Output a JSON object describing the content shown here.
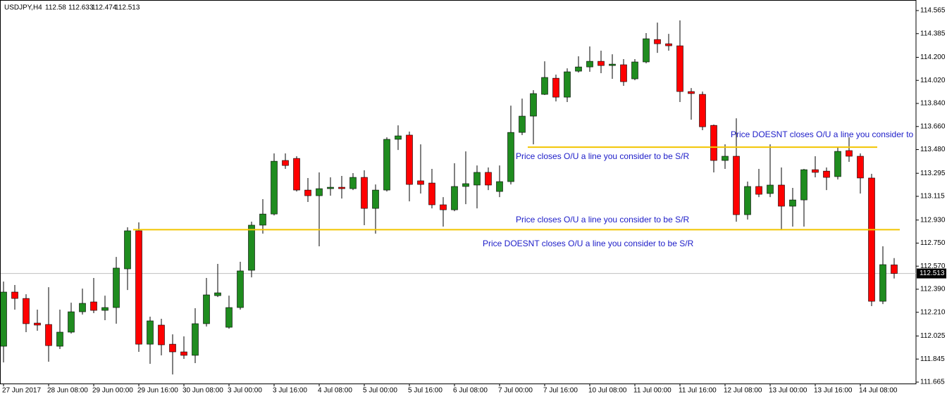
{
  "chart_data": {
    "type": "candlestick",
    "title": "USDJPY,H4",
    "categories": [
      "27 Jun 2017",
      null,
      null,
      null,
      "28 Jun 08:00",
      null,
      null,
      null,
      "29 Jun 00:00",
      null,
      null,
      null,
      "29 Jun 16:00",
      null,
      null,
      null,
      "30 Jun 08:00",
      null,
      null,
      null,
      "3 Jul 00:00",
      null,
      null,
      null,
      "3 Jul 16:00",
      null,
      null,
      null,
      "4 Jul 08:00",
      null,
      null,
      null,
      "5 Jul 00:00",
      null,
      null,
      null,
      "5 Jul 16:00",
      null,
      null,
      null,
      "6 Jul 08:00",
      null,
      null,
      null,
      "7 Jul 00:00",
      null,
      null,
      null,
      "7 Jul 16:00",
      null,
      null,
      null,
      "10 Jul 08:00",
      null,
      null,
      null,
      "11 Jul 00:00",
      null,
      null,
      null,
      "11 Jul 16:00",
      null,
      null,
      null,
      "12 Jul 08:00",
      null,
      null,
      null,
      "13 Jul 00:00",
      null,
      null,
      null,
      "13 Jul 16:00",
      null,
      null,
      null,
      "14 Jul 08:00",
      null,
      null,
      null
    ],
    "open": [
      111.945,
      112.368,
      112.318,
      112.126,
      112.115,
      111.945,
      112.055,
      112.214,
      112.291,
      112.225,
      112.247,
      112.549,
      112.846,
      111.961,
      112.11,
      111.961,
      111.901,
      111.874,
      112.121,
      112.34,
      112.093,
      112.247,
      112.538,
      112.89,
      112.977,
      113.395,
      113.411,
      113.164,
      113.12,
      113.175,
      113.186,
      113.175,
      113.263,
      113.021,
      113.164,
      113.56,
      113.593,
      113.236,
      113.219,
      113.049,
      113.01,
      113.192,
      113.203,
      113.302,
      113.153,
      113.23,
      113.614,
      113.741,
      113.911,
      114.037,
      113.889,
      114.092,
      114.125,
      114.169,
      114.136,
      114.142,
      114.032,
      114.164,
      114.339,
      114.306,
      114.29,
      113.933,
      113.911,
      113.669,
      113.395,
      113.428,
      112.972,
      113.192,
      113.137,
      113.203,
      113.038,
      113.087,
      113.323,
      113.312,
      113.269,
      113.472,
      113.428,
      113.258,
      112.296,
      112.58
    ],
    "high": [
      112.45,
      112.423,
      112.351,
      112.231,
      112.406,
      112.231,
      112.285,
      112.395,
      112.478,
      112.34,
      112.642,
      112.873,
      112.912,
      112.176,
      112.159,
      112.038,
      112.022,
      112.242,
      112.478,
      112.588,
      112.34,
      112.604,
      112.917,
      113.093,
      113.45,
      113.45,
      113.428,
      113.258,
      113.302,
      113.263,
      113.274,
      113.296,
      113.318,
      113.208,
      113.576,
      113.669,
      113.62,
      113.521,
      113.329,
      113.109,
      113.373,
      113.466,
      113.356,
      113.34,
      113.356,
      113.823,
      113.878,
      113.944,
      114.169,
      114.065,
      114.114,
      114.208,
      114.285,
      114.252,
      114.224,
      114.186,
      114.186,
      114.389,
      114.471,
      114.383,
      114.488,
      113.96,
      113.933,
      113.675,
      113.521,
      113.724,
      113.23,
      113.329,
      113.521,
      113.34,
      113.181,
      113.329,
      113.428,
      113.34,
      113.494,
      113.576,
      113.45,
      113.291,
      112.725,
      112.633
    ],
    "low": [
      111.819,
      112.231,
      112.055,
      112.066,
      111.824,
      111.923,
      112.044,
      112.192,
      112.203,
      112.148,
      112.121,
      112.384,
      111.901,
      111.808,
      111.874,
      111.725,
      111.846,
      111.813,
      112.099,
      112.329,
      112.082,
      112.231,
      112.483,
      112.824,
      112.966,
      113.329,
      113.153,
      113.071,
      112.725,
      113.12,
      113.098,
      113.164,
      112.89,
      112.824,
      113.153,
      113.477,
      113.076,
      113.137,
      113.021,
      112.879,
      112.999,
      113.054,
      113.021,
      113.164,
      113.109,
      113.208,
      113.593,
      113.521,
      113.906,
      113.856,
      113.851,
      114.081,
      114.087,
      114.076,
      114.032,
      113.977,
      114.021,
      114.153,
      114.235,
      114.252,
      113.851,
      113.713,
      113.631,
      113.302,
      113.329,
      112.917,
      112.934,
      113.109,
      113.109,
      112.851,
      112.879,
      112.879,
      113.263,
      113.164,
      113.247,
      113.384,
      113.137,
      112.258,
      112.274,
      112.474
    ],
    "close": [
      112.368,
      112.318,
      112.121,
      112.11,
      111.95,
      112.055,
      112.214,
      112.28,
      112.225,
      112.247,
      112.555,
      112.846,
      111.961,
      112.143,
      111.956,
      111.901,
      111.874,
      112.121,
      112.346,
      112.362,
      112.247,
      112.533,
      112.89,
      112.977,
      113.389,
      113.356,
      113.164,
      113.12,
      113.175,
      113.186,
      113.175,
      113.263,
      113.021,
      113.164,
      113.56,
      113.587,
      113.208,
      113.208,
      113.049,
      113.01,
      113.192,
      113.214,
      113.302,
      113.203,
      113.23,
      113.614,
      113.741,
      113.917,
      114.043,
      113.889,
      114.087,
      114.125,
      114.169,
      114.136,
      114.147,
      114.01,
      114.164,
      114.345,
      114.306,
      114.29,
      113.933,
      113.917,
      113.658,
      113.395,
      113.428,
      112.972,
      113.192,
      113.131,
      113.203,
      113.038,
      113.087,
      113.323,
      113.302,
      113.263,
      113.466,
      113.428,
      113.258,
      112.296,
      112.582,
      112.513
    ],
    "up_color": "#1f8c1f",
    "down_color": "#ff0000",
    "ylim": [
      111.665,
      114.565
    ],
    "yticks": [
      114.565,
      114.385,
      {
        "value": 114.2,
        "label": "114.200"
      },
      {
        "value": 114.02,
        "label": "114.020"
      },
      {
        "value": 113.84,
        "label": "113.840"
      },
      {
        "value": 113.66,
        "label": "113.660"
      },
      {
        "value": 113.48,
        "label": "113.480"
      },
      113.295,
      113.115,
      {
        "value": 112.93,
        "label": "112.930"
      },
      {
        "value": 112.75,
        "label": "112.750"
      },
      {
        "value": 112.57,
        "label": "112.570"
      },
      {
        "value": 112.39,
        "label": "112.390"
      },
      {
        "value": 112.21,
        "label": "112.210"
      },
      112.025,
      111.845,
      111.665
    ],
    "grid": false,
    "lines": [
      {
        "value": 112.855,
        "start": 12,
        "end": 80
      },
      {
        "value": 113.499,
        "start": 47,
        "end": 78
      }
    ],
    "line_color": "#f2c500",
    "annotations": [
      "Price closes O/U a line you consider to be S/R",
      "Price DOESNT closes O/U a line  you consider to be S/R",
      "Price closes O/U a line you consider to be S/R",
      "Price DOESNT closes O/U a line  you consider to be S/R"
    ]
  }
}
